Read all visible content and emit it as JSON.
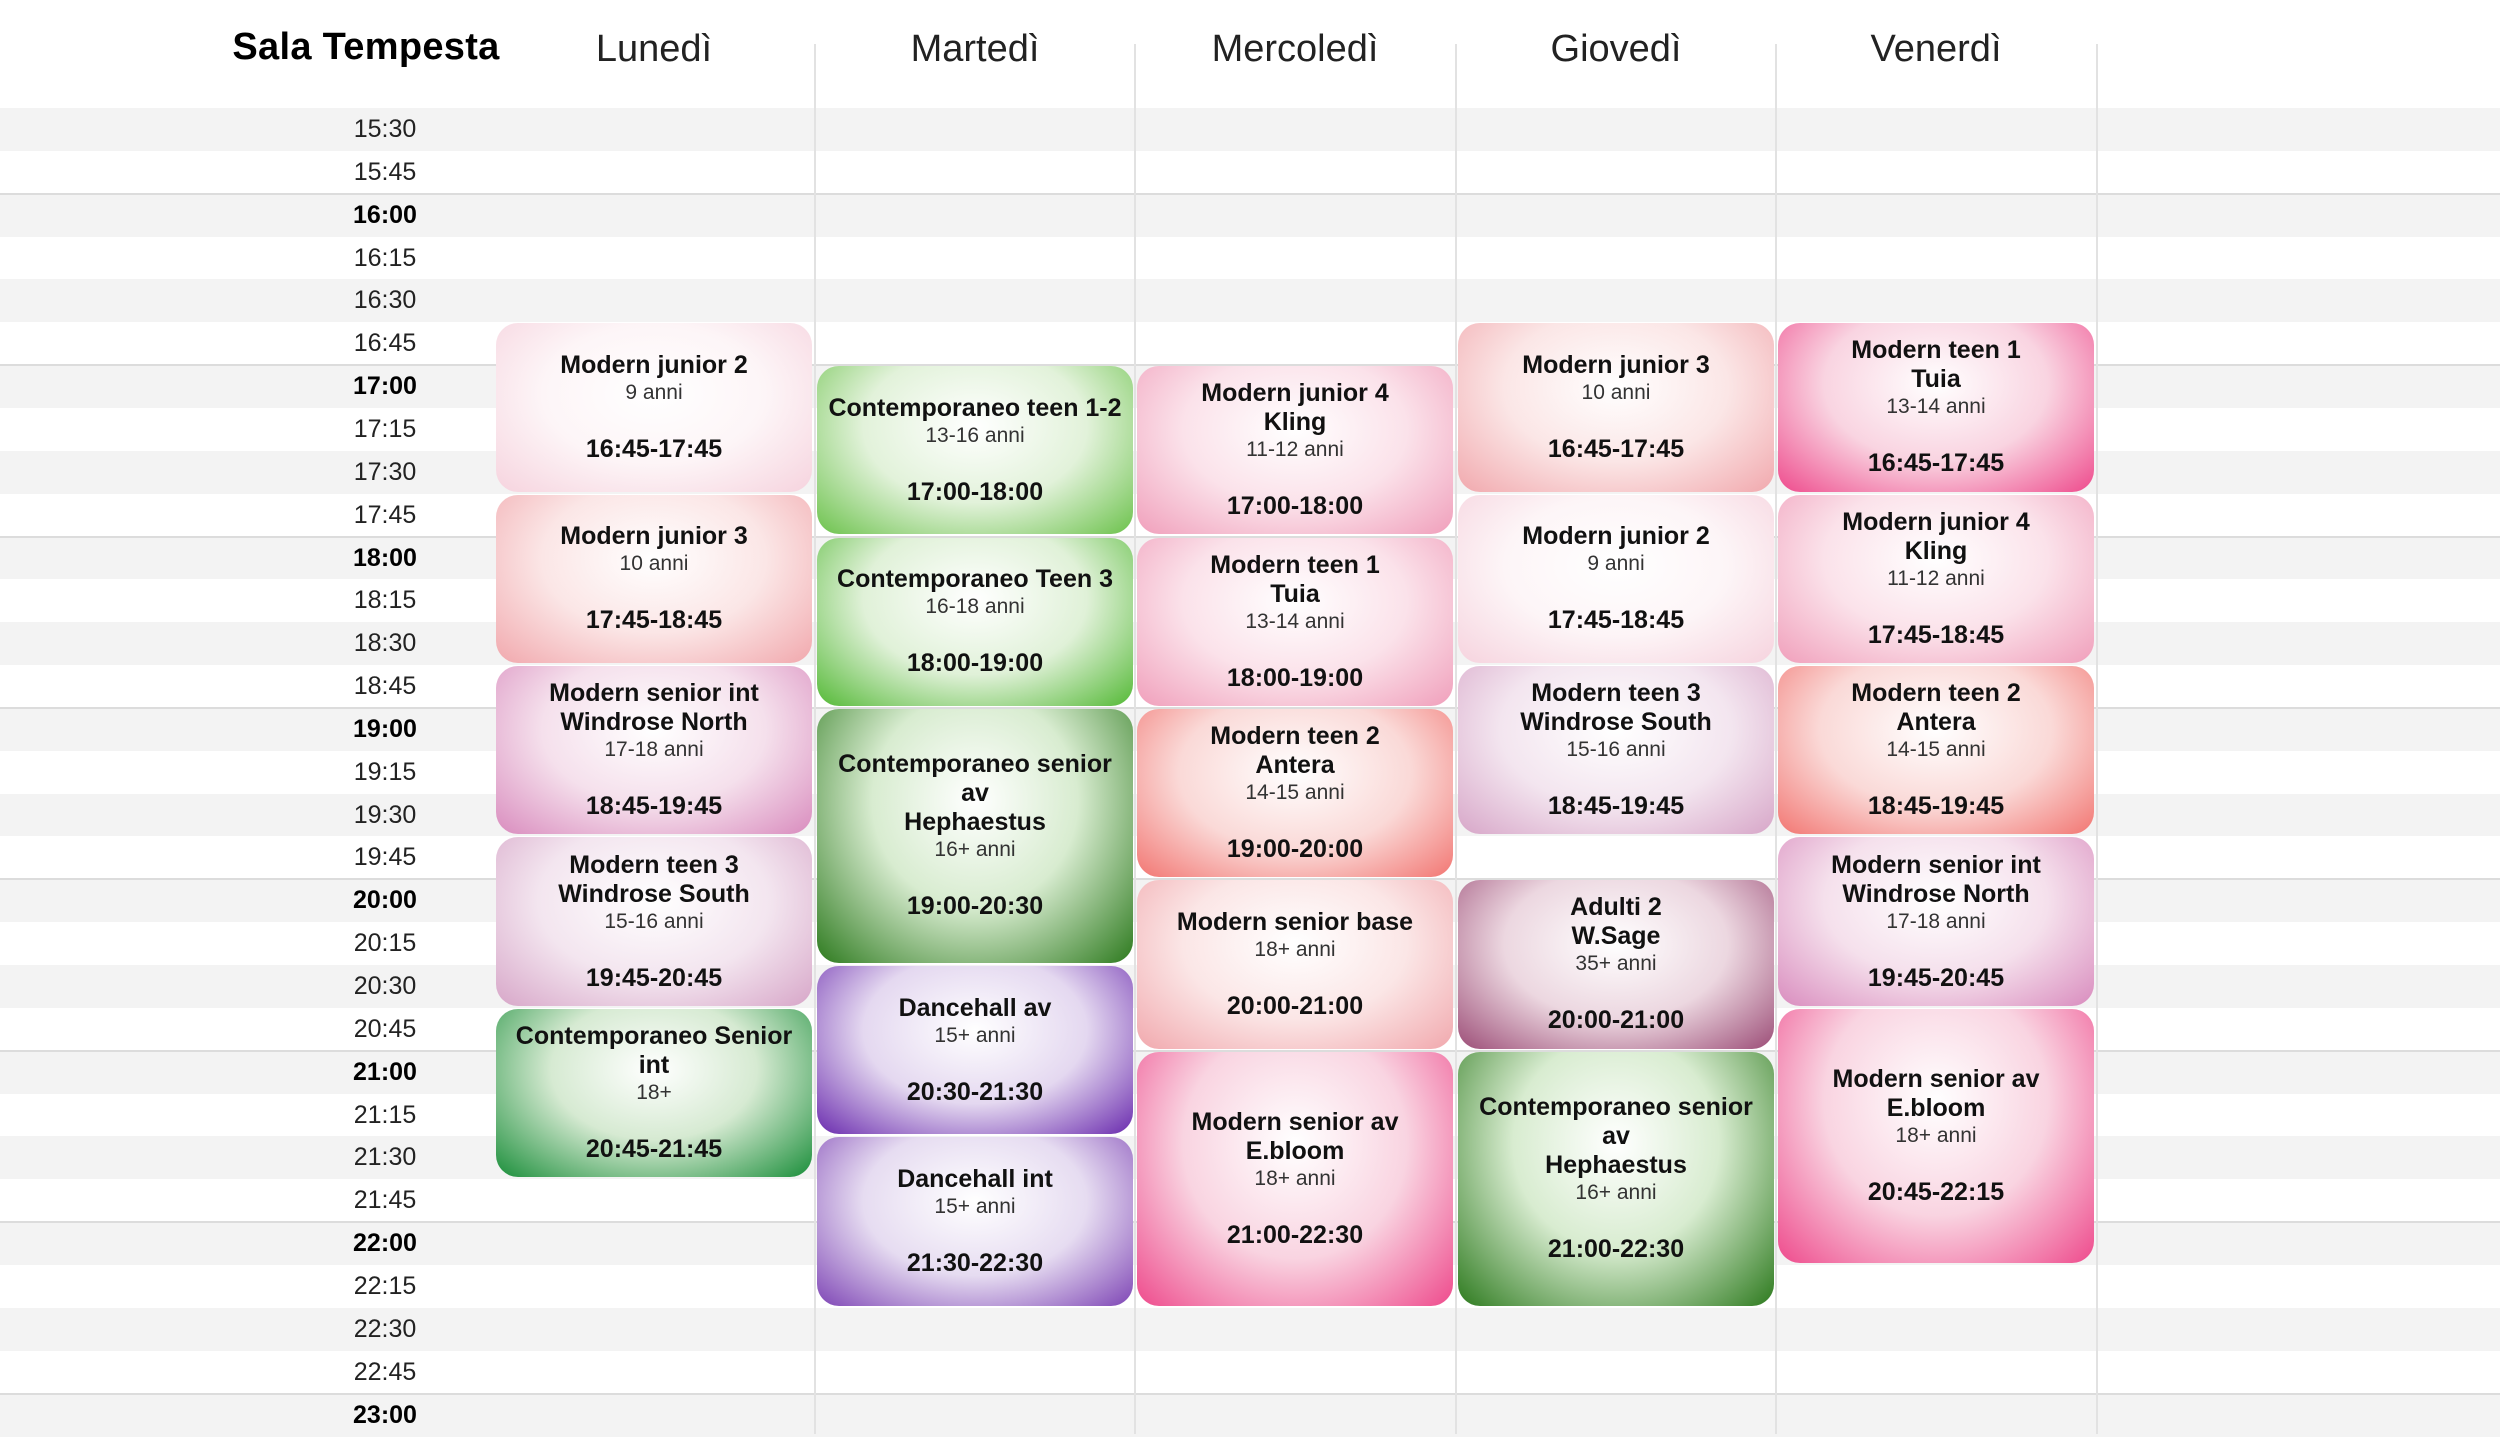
{
  "room_title": "Sala Tempesta",
  "days": [
    "Lunedì",
    "Martedì",
    "Mercoledì",
    "Giovedì",
    "Venerdì"
  ],
  "time_slots": [
    "15:30",
    "15:45",
    "16:00",
    "16:15",
    "16:30",
    "16:45",
    "17:00",
    "17:15",
    "17:30",
    "17:45",
    "18:00",
    "18:15",
    "18:30",
    "18:45",
    "19:00",
    "19:15",
    "19:30",
    "19:45",
    "20:00",
    "20:15",
    "20:30",
    "20:45",
    "21:00",
    "21:15",
    "21:30",
    "21:45",
    "22:00",
    "22:15",
    "22:30",
    "22:45",
    "23:00"
  ],
  "lessons": [
    {
      "day": 0,
      "name": "Modern junior 2",
      "teacher": "",
      "age": "9 anni",
      "time": "16:45-17:45",
      "start": "16:45",
      "end": "17:45",
      "color": "lightpink"
    },
    {
      "day": 0,
      "name": "Modern junior 3",
      "teacher": "",
      "age": "10 anni",
      "time": "17:45-18:45",
      "start": "17:45",
      "end": "18:45",
      "color": "salmon"
    },
    {
      "day": 0,
      "name": "Modern senior int",
      "teacher": "Windrose North",
      "age": "17-18 anni",
      "time": "18:45-19:45",
      "start": "18:45",
      "end": "19:45",
      "color": "mauve"
    },
    {
      "day": 0,
      "name": "Modern teen 3",
      "teacher": "Windrose South",
      "age": "15-16 anni",
      "time": "19:45-20:45",
      "start": "19:45",
      "end": "20:45",
      "color": "lilac"
    },
    {
      "day": 0,
      "name": "Contemporaneo Senior int",
      "teacher": "",
      "age": "18+",
      "time": "20:45-21:45",
      "start": "20:45",
      "end": "21:45",
      "color": "forest"
    },
    {
      "day": 1,
      "name": "Contemporaneo teen 1-2",
      "teacher": "",
      "age": "13-16 anni",
      "time": "17:00-18:00",
      "start": "17:00",
      "end": "18:00",
      "color": "green"
    },
    {
      "day": 1,
      "name": "Contemporaneo Teen 3",
      "teacher": "",
      "age": "16-18 anni",
      "time": "18:00-19:00",
      "start": "18:00",
      "end": "19:00",
      "color": "green2"
    },
    {
      "day": 1,
      "name": "Contemporaneo senior av",
      "teacher": "Hephaestus",
      "age": "16+ anni",
      "time": "19:00-20:30",
      "start": "19:00",
      "end": "20:30",
      "color": "darkgreen"
    },
    {
      "day": 1,
      "name": "Dancehall av",
      "teacher": "",
      "age": "15+ anni",
      "time": "20:30-21:30",
      "start": "20:30",
      "end": "21:30",
      "color": "purple"
    },
    {
      "day": 1,
      "name": "Dancehall int",
      "teacher": "",
      "age": "15+ anni",
      "time": "21:30-22:30",
      "start": "21:30",
      "end": "22:30",
      "color": "purple2"
    },
    {
      "day": 2,
      "name": "Modern junior 4",
      "teacher": "Kling",
      "age": "11-12 anni",
      "time": "17:00-18:00",
      "start": "17:00",
      "end": "18:00",
      "color": "pink"
    },
    {
      "day": 2,
      "name": "Modern teen 1",
      "teacher": "Tuia",
      "age": "13-14 anni",
      "time": "18:00-19:00",
      "start": "18:00",
      "end": "19:00",
      "color": "pink"
    },
    {
      "day": 2,
      "name": "Modern teen 2",
      "teacher": "Antera",
      "age": "14-15 anni",
      "time": "19:00-20:00",
      "start": "19:00",
      "end": "20:00",
      "color": "coral"
    },
    {
      "day": 2,
      "name": "Modern senior base",
      "teacher": "",
      "age": "18+ anni",
      "time": "20:00-21:00",
      "start": "20:00",
      "end": "21:00",
      "color": "salmon"
    },
    {
      "day": 2,
      "name": "Modern senior av",
      "teacher": "E.bloom",
      "age": "18+ anni",
      "time": "21:00-22:30",
      "start": "21:00",
      "end": "22:30",
      "color": "hotpink"
    },
    {
      "day": 3,
      "name": "Modern junior 3",
      "teacher": "",
      "age": "10 anni",
      "time": "16:45-17:45",
      "start": "16:45",
      "end": "17:45",
      "color": "salmon"
    },
    {
      "day": 3,
      "name": "Modern junior 2",
      "teacher": "",
      "age": "9 anni",
      "time": "17:45-18:45",
      "start": "17:45",
      "end": "18:45",
      "color": "lightpink"
    },
    {
      "day": 3,
      "name": "Modern teen 3",
      "teacher": "Windrose South",
      "age": "15-16 anni",
      "time": "18:45-19:45",
      "start": "18:45",
      "end": "19:45",
      "color": "lilac"
    },
    {
      "day": 3,
      "name": "Adulti 2",
      "teacher": "W.Sage",
      "age": "35+ anni",
      "time": "20:00-21:00",
      "start": "20:00",
      "end": "21:00",
      "color": "plum"
    },
    {
      "day": 3,
      "name": "Contemporaneo senior av",
      "teacher": "Hephaestus",
      "age": "16+ anni",
      "time": "21:00-22:30",
      "start": "21:00",
      "end": "22:30",
      "color": "darkgreen"
    },
    {
      "day": 4,
      "name": "Modern teen 1",
      "teacher": "Tuia",
      "age": "13-14 anni",
      "time": "16:45-17:45",
      "start": "16:45",
      "end": "17:45",
      "color": "hotpink"
    },
    {
      "day": 4,
      "name": "Modern junior 4",
      "teacher": "Kling",
      "age": "11-12 anni",
      "time": "17:45-18:45",
      "start": "17:45",
      "end": "18:45",
      "color": "pink"
    },
    {
      "day": 4,
      "name": "Modern teen 2",
      "teacher": "Antera",
      "age": "14-15 anni",
      "time": "18:45-19:45",
      "start": "18:45",
      "end": "19:45",
      "color": "coral"
    },
    {
      "day": 4,
      "name": "Modern senior int",
      "teacher": "Windrose North",
      "age": "17-18 anni",
      "time": "19:45-20:45",
      "start": "19:45",
      "end": "20:45",
      "color": "mauve"
    },
    {
      "day": 4,
      "name": "Modern senior av",
      "teacher": "E.bloom",
      "age": "18+ anni",
      "time": "20:45-22:15",
      "start": "20:45",
      "end": "22:15",
      "color": "hotpink"
    }
  ]
}
